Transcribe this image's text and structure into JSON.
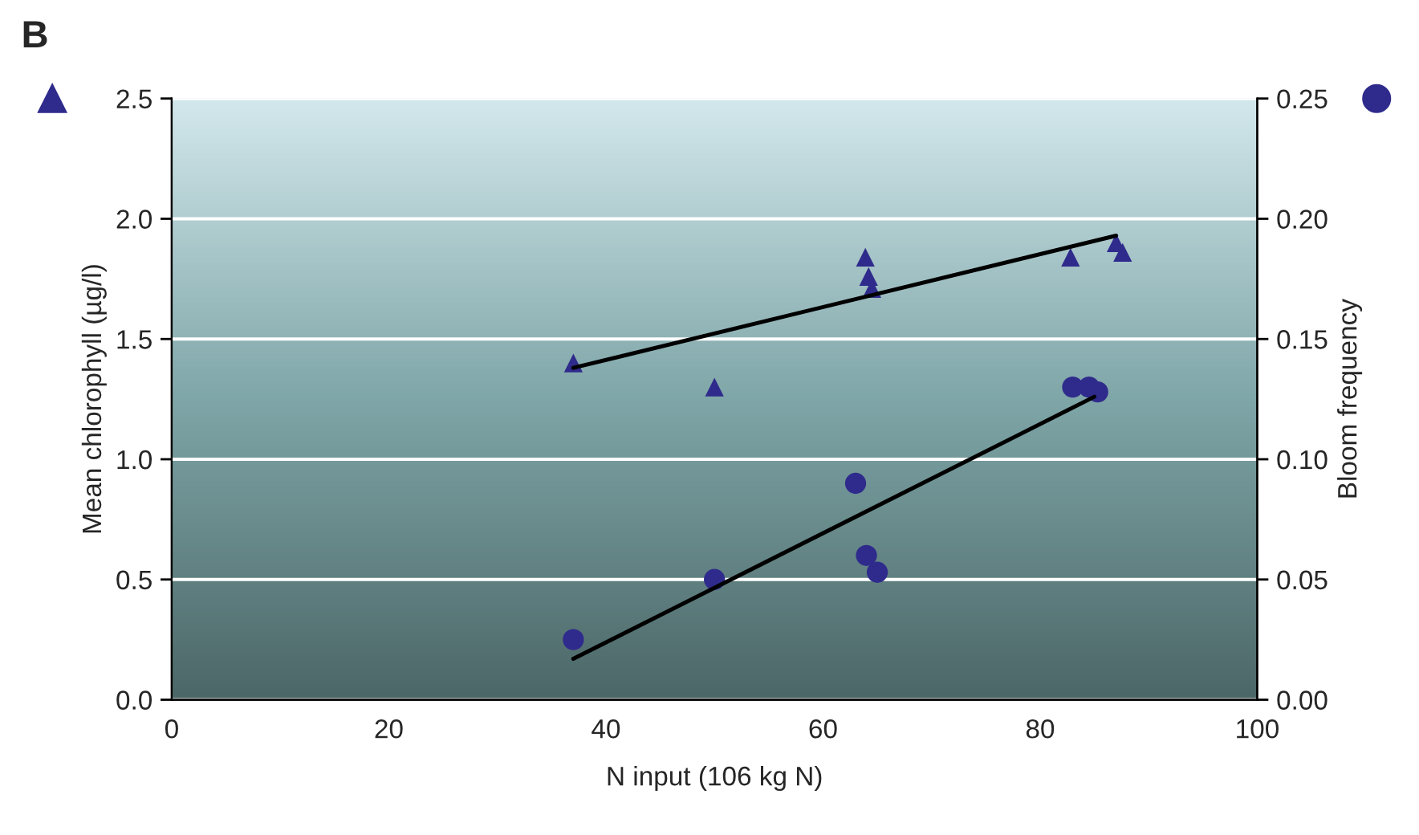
{
  "chart_data": {
    "type": "scatter",
    "title": "B",
    "xlabel": "N input (106 kg N)",
    "ylabel": "Mean chlorophyll (µg/l)",
    "y2label": "Bloom frequency",
    "xlim": [
      0,
      100
    ],
    "xticks": [
      0,
      20,
      40,
      60,
      80,
      100
    ],
    "ylim": [
      0,
      2.5
    ],
    "yticks": [
      {
        "value": 0,
        "label": "0.0"
      },
      0.5,
      {
        "value": 1,
        "label": "1.0"
      },
      1.5,
      {
        "value": 2,
        "label": "2.0"
      },
      2.5
    ],
    "y2lim": [
      0,
      0.25
    ],
    "y2ticks": [
      {
        "value": 0,
        "label": "0.00"
      },
      0.05,
      {
        "value": 0.1,
        "label": "0.10"
      },
      0.15,
      {
        "value": 0.2,
        "label": "0.20"
      },
      0.25
    ],
    "grid": "y",
    "legend": false,
    "series": [
      {
        "marker": "triangle",
        "color": "#2f2b8c",
        "x": [
          37,
          50,
          63.9,
          64.2,
          64.5,
          82.8,
          87,
          87.6
        ],
        "values": [
          1.4,
          1.3,
          1.84,
          1.76,
          1.71,
          1.84,
          1.9,
          1.86
        ]
      },
      {
        "type": "line",
        "color": "#000000",
        "x": [
          37,
          87
        ],
        "values": [
          1.38,
          1.93
        ]
      },
      {
        "marker": "circle",
        "axis": "y2",
        "color": "#2f2b8c",
        "x": [
          37,
          50,
          63,
          64,
          65,
          83,
          84.5,
          85.3
        ],
        "values": [
          0.025,
          0.05,
          0.09,
          0.06,
          0.053,
          0.13,
          0.13,
          0.128
        ]
      },
      {
        "type": "line",
        "axis": "y2",
        "color": "#000000",
        "x": [
          37,
          85
        ],
        "values": [
          0.017,
          0.126
        ]
      }
    ]
  }
}
